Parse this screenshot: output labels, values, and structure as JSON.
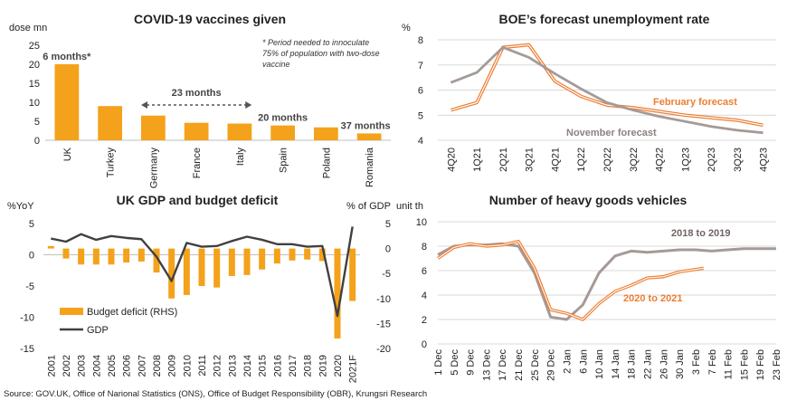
{
  "source": "Source: GOV.UK, Office of Narional Statistics (ONS), Office of Budget Responsibility (OBR), Krungsri Research",
  "colors": {
    "orange": "#ED7D31",
    "gold": "#F4A21B",
    "grey": "#A59A97",
    "dark": "#404040"
  },
  "chart_data": [
    {
      "type": "bar",
      "title": "COVID-19 vaccines given",
      "ylabel": "dose mn",
      "ylim": [
        0,
        25
      ],
      "yticks": [
        0,
        5,
        10,
        15,
        20,
        25
      ],
      "categories": [
        "UK",
        "Turkey",
        "Germany",
        "France",
        "Italy",
        "Spain",
        "Poland",
        "Romania"
      ],
      "values": [
        20,
        9,
        6.5,
        4.6,
        4.4,
        3.9,
        3.4,
        1.8
      ],
      "annotations": [
        {
          "text": "6 months*",
          "category": "UK"
        },
        {
          "text": "23 months",
          "from": "Germany",
          "to": "Italy"
        },
        {
          "text": "20 months",
          "category": "Spain"
        },
        {
          "text": "37 months",
          "category": "Romania"
        }
      ],
      "note": "* Period needed to innoculate 75% of population with two-dose vaccine"
    },
    {
      "type": "line",
      "title": "BOE’s forecast unemployment rate",
      "ylabel": "%",
      "ylim": [
        4,
        8
      ],
      "yticks": [
        4,
        5,
        6,
        7,
        8
      ],
      "x": [
        "4Q20",
        "1Q21",
        "2Q21",
        "3Q21",
        "4Q21",
        "1Q22",
        "2Q22",
        "3Q22",
        "4Q22",
        "1Q23",
        "2Q23",
        "3Q23",
        "4Q23"
      ],
      "series": [
        {
          "name": "February forecast",
          "values": [
            5.2,
            5.5,
            7.7,
            7.8,
            6.35,
            5.75,
            5.4,
            5.3,
            5.15,
            5.0,
            4.9,
            4.8,
            4.6
          ]
        },
        {
          "name": "November forecast",
          "values": [
            6.3,
            6.7,
            7.7,
            7.3,
            6.65,
            6.05,
            5.5,
            5.2,
            4.95,
            4.75,
            4.55,
            4.4,
            4.3
          ]
        }
      ]
    },
    {
      "type": "bar+line",
      "title": "UK GDP and budget deficit",
      "ylabel_left": "%YoY",
      "ylabel_right": "% of GDP",
      "ylim_left": [
        -15,
        5
      ],
      "ylim_right": [
        -20,
        5
      ],
      "yticks_left": [
        -15,
        -10,
        -5,
        0,
        5
      ],
      "yticks_right": [
        -20,
        -15,
        -10,
        -5,
        0,
        5
      ],
      "categories": [
        "2001",
        "2002",
        "2003",
        "2004",
        "2005",
        "2006",
        "2007",
        "2008",
        "2009",
        "2010",
        "2011",
        "2012",
        "2013",
        "2014",
        "2015",
        "2016",
        "2017",
        "2018",
        "2019",
        "2020",
        "2021F"
      ],
      "series": [
        {
          "name": "Budget deficit (RHS)",
          "axis": "right",
          "values": [
            0.5,
            -2.0,
            -3.2,
            -3.2,
            -3.2,
            -2.8,
            -2.6,
            -4.8,
            -10.0,
            -9.3,
            -7.5,
            -7.8,
            -5.5,
            -5.3,
            -4.2,
            -3.0,
            -2.4,
            -2.2,
            -2.5,
            -18.0,
            -10.5
          ]
        },
        {
          "name": "GDP",
          "axis": "left",
          "values": [
            2.6,
            2.1,
            3.3,
            2.4,
            3.0,
            2.7,
            2.5,
            -0.3,
            -4.2,
            1.9,
            1.3,
            1.4,
            2.2,
            2.9,
            2.4,
            1.7,
            1.7,
            1.3,
            1.4,
            -9.8,
            4.5
          ]
        }
      ]
    },
    {
      "type": "line",
      "title": "Number of heavy goods vehicles",
      "ylabel": "unit th",
      "ylim": [
        0,
        10
      ],
      "yticks": [
        0,
        2,
        4,
        6,
        8,
        10
      ],
      "x_ticks": [
        "1 Dec",
        "5 Dec",
        "9 Dec",
        "13 Dec",
        "17 Dec",
        "21 Dec",
        "25 Dec",
        "29 Dec",
        "2 Jan",
        "6 Jan",
        "10 Jan",
        "14 Jan",
        "18 Jan",
        "22 Jan",
        "26 Jan",
        "30 Jan",
        "3 Feb",
        "7 Feb",
        "11 Feb",
        "15 Feb",
        "19 Feb",
        "23 Feb"
      ],
      "series": [
        {
          "name": "2018 to 2019",
          "x": [
            "1 Dec",
            "5 Dec",
            "9 Dec",
            "13 Dec",
            "17 Dec",
            "21 Dec",
            "25 Dec",
            "29 Dec",
            "2 Jan",
            "6 Jan",
            "10 Jan",
            "14 Jan",
            "18 Jan",
            "22 Jan",
            "26 Jan",
            "30 Jan",
            "3 Feb",
            "7 Feb",
            "11 Feb",
            "15 Feb",
            "19 Feb",
            "23 Feb"
          ],
          "values": [
            7.3,
            8.0,
            8.1,
            8.1,
            8.2,
            8.0,
            5.8,
            2.2,
            2.0,
            3.2,
            5.8,
            7.2,
            7.6,
            7.5,
            7.6,
            7.7,
            7.7,
            7.6,
            7.7,
            7.8,
            7.8,
            7.8
          ]
        },
        {
          "name": "2020 to 2021",
          "x": [
            "1 Dec",
            "5 Dec",
            "9 Dec",
            "13 Dec",
            "17 Dec",
            "21 Dec",
            "25 Dec",
            "29 Dec",
            "2 Jan",
            "6 Jan",
            "10 Jan",
            "14 Jan",
            "18 Jan",
            "22 Jan",
            "26 Jan",
            "30 Jan",
            "3 Feb",
            "5 Feb"
          ],
          "values": [
            7.0,
            7.9,
            8.2,
            8.0,
            8.1,
            8.4,
            6.2,
            2.8,
            2.5,
            2.0,
            3.3,
            4.3,
            4.8,
            5.4,
            5.5,
            5.9,
            6.1,
            6.2
          ]
        }
      ]
    }
  ]
}
